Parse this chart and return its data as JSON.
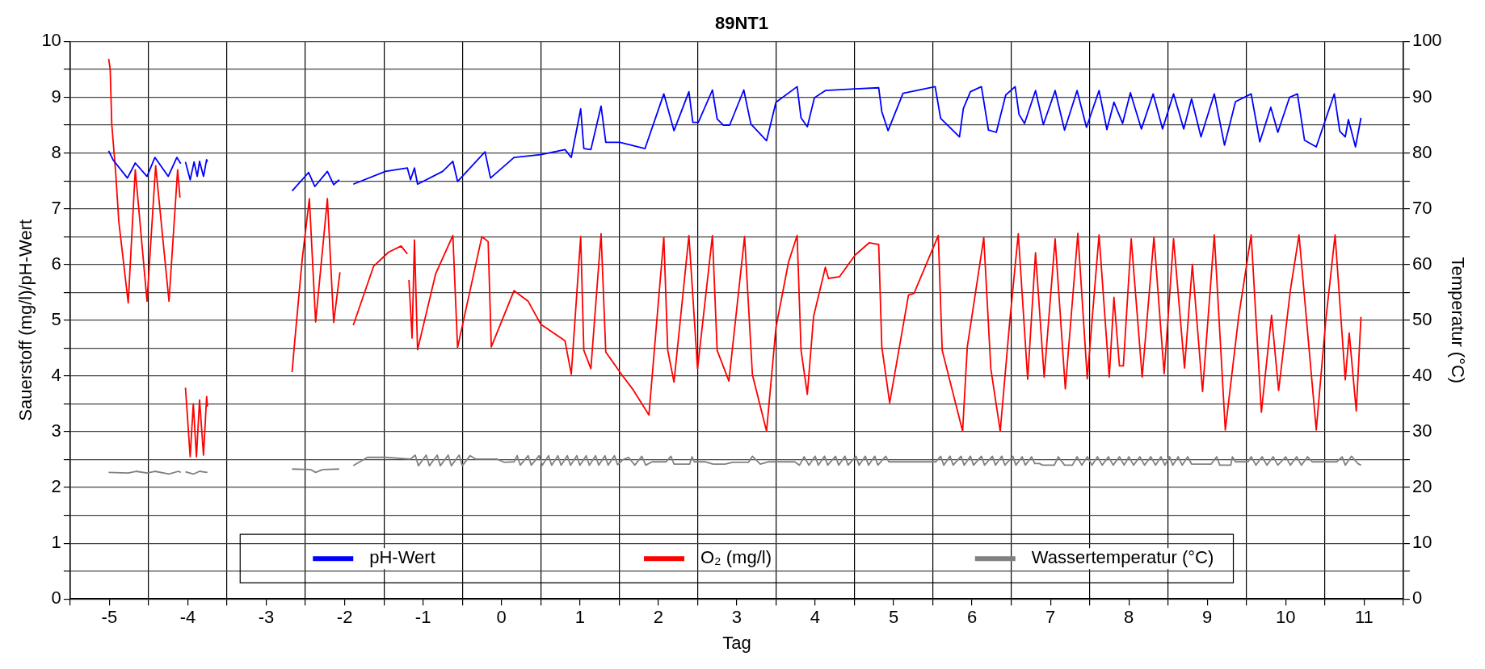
{
  "chart_data": {
    "type": "line",
    "title": "89NT1",
    "xlabel": "Tag",
    "ylabel": "Sauerstoff (mg/l)/pH-Wert",
    "y2label": "Temperatur (°C)",
    "xlim": [
      -5.5,
      11.5
    ],
    "xticks": [
      {
        "value": -5.5,
        "label": null
      },
      -5,
      {
        "value": -4.5,
        "label": null
      },
      -4,
      {
        "value": -3.5,
        "label": null
      },
      -3,
      {
        "value": -2.5,
        "label": null
      },
      -2,
      {
        "value": -1.5,
        "label": null
      },
      -1,
      {
        "value": -0.5,
        "label": null
      },
      0,
      {
        "value": 0.5,
        "label": null
      },
      1,
      {
        "value": 1.5,
        "label": null
      },
      2,
      {
        "value": 2.5,
        "label": null
      },
      3,
      {
        "value": 3.5,
        "label": null
      },
      4,
      {
        "value": 4.5,
        "label": null
      },
      5,
      {
        "value": 5.5,
        "label": null
      },
      6,
      {
        "value": 6.5,
        "label": null
      },
      7,
      {
        "value": 7.5,
        "label": null
      },
      8,
      {
        "value": 8.5,
        "label": null
      },
      9,
      {
        "value": 9.5,
        "label": null
      },
      10,
      {
        "value": 10.5,
        "label": null
      },
      11,
      {
        "value": 11.5,
        "label": null
      }
    ],
    "ylim": [
      0,
      10
    ],
    "yticks": [
      0,
      {
        "value": 0.5,
        "label": null
      },
      1,
      {
        "value": 1.5,
        "label": null
      },
      2,
      {
        "value": 2.5,
        "label": null
      },
      3,
      {
        "value": 3.5,
        "label": null
      },
      4,
      {
        "value": 4.5,
        "label": null
      },
      5,
      {
        "value": 5.5,
        "label": null
      },
      6,
      {
        "value": 6.5,
        "label": null
      },
      7,
      {
        "value": 7.5,
        "label": null
      },
      8,
      {
        "value": 8.5,
        "label": null
      },
      9,
      {
        "value": 9.5,
        "label": null
      },
      10
    ],
    "y2lim": [
      0,
      100
    ],
    "y2ticks": [
      0,
      {
        "value": 5,
        "label": null
      },
      10,
      {
        "value": 15,
        "label": null
      },
      20,
      {
        "value": 25,
        "label": null
      },
      30,
      {
        "value": 35,
        "label": null
      },
      40,
      {
        "value": 45,
        "label": null
      },
      50,
      {
        "value": 55,
        "label": null
      },
      60,
      {
        "value": 65,
        "label": null
      },
      70,
      {
        "value": 75,
        "label": null
      },
      80,
      {
        "value": 85,
        "label": null
      },
      90,
      {
        "value": 95,
        "label": null
      },
      100
    ],
    "grid": true,
    "legend": "bottom",
    "marker": "none",
    "series": [
      {
        "name": "pH-Wert",
        "color": "#0000ff",
        "x": [
          -5.01,
          -4.95,
          -4.77,
          -4.67,
          -4.52,
          -4.42,
          -4.25,
          -4.14,
          -4.09,
          -4.06,
          -4.03,
          -3.97,
          -3.92,
          -3.88,
          -3.85,
          -3.8,
          -3.76,
          -3.75,
          -3.2,
          -2.67,
          -2.46,
          -2.38,
          -2.22,
          -2.14,
          -2.07,
          -1.98,
          -1.89,
          -1.48,
          -1.2,
          -1.16,
          -1.11,
          -1.07,
          -0.75,
          -0.62,
          -0.56,
          -0.21,
          -0.14,
          0.16,
          0.5,
          0.81,
          0.89,
          1.01,
          1.05,
          1.14,
          1.27,
          1.33,
          1.51,
          1.83,
          2.07,
          2.2,
          2.39,
          2.44,
          2.51,
          2.69,
          2.75,
          2.83,
          2.91,
          3.09,
          3.18,
          3.38,
          3.5,
          3.77,
          3.82,
          3.9,
          3.99,
          4.13,
          4.51,
          4.81,
          4.85,
          4.93,
          5.12,
          5.53,
          5.6,
          5.84,
          5.89,
          5.98,
          6.12,
          6.21,
          6.31,
          6.43,
          6.55,
          6.6,
          6.67,
          6.81,
          6.91,
          7.06,
          7.18,
          7.34,
          7.46,
          7.62,
          7.72,
          7.81,
          7.92,
          8.02,
          8.16,
          8.31,
          8.43,
          8.57,
          8.7,
          8.8,
          8.92,
          9.09,
          9.22,
          9.36,
          9.56,
          9.67,
          9.81,
          9.9,
          10.05,
          10.15,
          10.24,
          10.39,
          10.62,
          10.69,
          10.76,
          10.8,
          10.89,
          10.96
        ],
        "values": [
          8.04,
          7.87,
          7.55,
          7.82,
          7.58,
          7.92,
          7.58,
          7.92,
          7.81,
          null,
          7.84,
          7.52,
          7.84,
          7.58,
          7.85,
          7.58,
          7.88,
          7.84,
          null,
          7.32,
          7.65,
          7.4,
          7.67,
          7.43,
          7.52,
          null,
          7.44,
          7.67,
          7.73,
          7.52,
          7.73,
          7.44,
          7.67,
          7.85,
          7.49,
          8.02,
          7.55,
          7.92,
          7.97,
          8.06,
          7.92,
          8.79,
          8.08,
          8.06,
          8.84,
          8.19,
          8.19,
          8.08,
          9.06,
          8.4,
          9.1,
          8.55,
          8.55,
          9.13,
          8.61,
          8.5,
          8.5,
          9.13,
          8.52,
          8.22,
          8.91,
          9.19,
          8.63,
          8.47,
          8.99,
          9.12,
          9.15,
          9.17,
          8.74,
          8.4,
          9.07,
          9.19,
          8.62,
          8.29,
          8.8,
          9.1,
          9.19,
          8.41,
          8.37,
          9.04,
          9.19,
          8.69,
          8.53,
          9.12,
          8.51,
          9.12,
          8.41,
          9.12,
          8.46,
          9.12,
          8.42,
          8.91,
          8.53,
          9.08,
          8.43,
          9.06,
          8.43,
          9.06,
          8.43,
          8.97,
          8.29,
          9.06,
          8.14,
          8.92,
          9.06,
          8.2,
          8.82,
          8.37,
          9.0,
          9.06,
          8.23,
          8.11,
          9.06,
          8.39,
          8.29,
          8.6,
          8.11,
          8.63
        ]
      },
      {
        "name": "O₂ (mg/l)",
        "color": "#ff0000",
        "x": [
          -5.01,
          -4.99,
          -4.97,
          -4.92,
          -4.88,
          -4.76,
          -4.67,
          -4.52,
          -4.41,
          -4.24,
          -4.13,
          -4.1,
          -4.06,
          -4.03,
          -3.97,
          -3.93,
          -3.89,
          -3.85,
          -3.8,
          -3.76,
          -3.75,
          -3.2,
          -2.67,
          -2.64,
          -2.54,
          -2.45,
          -2.37,
          -2.22,
          -2.14,
          -2.06,
          -1.98,
          -1.89,
          -1.63,
          -1.44,
          -1.28,
          -1.2,
          -1.19,
          -1.18,
          -1.14,
          -1.11,
          -1.07,
          -0.84,
          -0.62,
          -0.56,
          -0.25,
          -0.17,
          -0.13,
          0.16,
          0.34,
          0.5,
          0.81,
          0.89,
          1.01,
          1.05,
          1.14,
          1.27,
          1.33,
          1.52,
          1.68,
          1.88,
          2.07,
          2.12,
          2.2,
          2.39,
          2.5,
          2.69,
          2.75,
          2.9,
          3.1,
          3.2,
          3.38,
          3.5,
          3.66,
          3.77,
          3.82,
          3.9,
          3.98,
          4.13,
          4.17,
          4.31,
          4.51,
          4.69,
          4.81,
          4.85,
          4.95,
          5.19,
          5.26,
          5.57,
          5.62,
          5.88,
          5.94,
          6.15,
          6.24,
          6.36,
          6.48,
          6.59,
          6.71,
          6.81,
          6.92,
          7.06,
          7.19,
          7.35,
          7.47,
          7.62,
          7.75,
          7.81,
          7.88,
          7.93,
          8.03,
          8.17,
          8.32,
          8.45,
          8.57,
          8.71,
          8.81,
          8.94,
          9.09,
          9.23,
          9.4,
          9.56,
          9.69,
          9.82,
          9.91,
          10.06,
          10.17,
          10.39,
          10.51,
          10.63,
          10.76,
          10.81,
          10.9,
          10.96
        ],
        "values": [
          9.69,
          9.51,
          8.52,
          7.65,
          6.77,
          5.31,
          7.7,
          5.34,
          7.77,
          5.34,
          7.7,
          7.2,
          null,
          3.79,
          2.55,
          3.5,
          2.55,
          3.57,
          2.58,
          3.63,
          3.45,
          null,
          4.07,
          4.57,
          6.11,
          7.18,
          4.97,
          7.18,
          4.96,
          5.86,
          null,
          4.91,
          5.97,
          6.22,
          6.33,
          6.19,
          null,
          5.72,
          4.68,
          6.44,
          4.47,
          5.83,
          6.52,
          4.51,
          6.5,
          6.41,
          4.52,
          5.53,
          5.34,
          4.93,
          4.63,
          4.03,
          6.5,
          4.46,
          4.13,
          6.55,
          4.43,
          4.05,
          3.75,
          3.3,
          6.49,
          4.46,
          3.89,
          6.52,
          4.13,
          6.52,
          4.46,
          3.91,
          6.5,
          4.02,
          3.01,
          4.87,
          6.04,
          6.52,
          4.46,
          3.67,
          5.07,
          5.95,
          5.75,
          5.78,
          6.17,
          6.39,
          6.36,
          4.52,
          3.52,
          5.45,
          5.48,
          6.52,
          4.46,
          3.01,
          4.52,
          6.48,
          4.13,
          3.01,
          4.96,
          6.55,
          3.94,
          6.21,
          3.98,
          6.46,
          3.77,
          6.56,
          3.95,
          6.53,
          3.98,
          5.41,
          4.18,
          4.18,
          6.46,
          3.98,
          6.49,
          4.04,
          6.46,
          4.14,
          6.0,
          3.72,
          6.53,
          3.03,
          5.06,
          6.53,
          3.35,
          5.09,
          3.74,
          5.54,
          6.53,
          3.03,
          4.98,
          6.53,
          3.93,
          4.77,
          3.37,
          5.06
        ]
      },
      {
        "name": "Wassertemperatur (°C)",
        "color": "#808080",
        "axis": "y2",
        "x": [
          -5.01,
          -4.76,
          -4.66,
          -4.52,
          -4.42,
          -4.24,
          -4.12,
          -4.09,
          -4.06,
          -4.03,
          -3.93,
          -3.85,
          -3.75,
          -3.2,
          -2.67,
          -2.43,
          -2.37,
          -2.28,
          -2.07,
          -1.98,
          -1.89,
          -1.71,
          -1.48,
          -1.16,
          -1.1,
          -1.06,
          -0.96,
          -0.92,
          -0.82,
          -0.78,
          -0.68,
          -0.64,
          -0.54,
          -0.5,
          -0.4,
          -0.33,
          -0.06,
          0.04,
          0.16,
          0.2,
          0.24,
          0.34,
          0.38,
          0.48,
          0.52,
          0.6,
          0.64,
          0.72,
          0.76,
          0.84,
          0.88,
          0.96,
          1.0,
          1.08,
          1.12,
          1.2,
          1.24,
          1.32,
          1.36,
          1.44,
          1.48,
          1.55,
          1.62,
          1.7,
          1.79,
          1.84,
          1.92,
          2.1,
          2.16,
          2.2,
          2.4,
          2.43,
          2.46,
          2.6,
          2.7,
          2.85,
          2.95,
          3.15,
          3.2,
          3.3,
          3.4,
          3.74,
          3.8,
          3.86,
          3.92,
          4.0,
          4.04,
          4.12,
          4.16,
          4.26,
          4.3,
          4.38,
          4.42,
          4.52,
          4.56,
          4.64,
          4.68,
          4.76,
          4.8,
          4.9,
          4.94,
          5.54,
          5.6,
          5.64,
          5.72,
          5.76,
          5.86,
          5.9,
          5.98,
          6.02,
          6.12,
          6.16,
          6.26,
          6.3,
          6.38,
          6.42,
          6.52,
          6.56,
          6.64,
          6.68,
          6.76,
          6.8,
          6.86,
          6.9,
          7.05,
          7.1,
          7.18,
          7.28,
          7.34,
          7.4,
          7.47,
          7.53,
          7.6,
          7.66,
          7.74,
          7.8,
          7.88,
          7.94,
          8.0,
          8.06,
          8.14,
          8.2,
          8.28,
          8.34,
          8.41,
          8.46,
          8.52,
          8.56,
          8.63,
          8.68,
          8.75,
          8.8,
          9.05,
          9.12,
          9.16,
          9.3,
          9.32,
          9.36,
          9.52,
          9.56,
          9.62,
          9.7,
          9.76,
          9.84,
          9.9,
          10.0,
          10.06,
          10.14,
          10.2,
          10.28,
          10.34,
          10.65,
          10.72,
          10.76,
          10.84,
          10.92,
          10.96
        ],
        "values": [
          22.7,
          22.6,
          22.9,
          22.6,
          22.9,
          22.4,
          22.9,
          22.7,
          null,
          22.8,
          22.4,
          22.9,
          22.7,
          null,
          23.3,
          23.2,
          22.7,
          23.2,
          23.3,
          null,
          23.9,
          25.4,
          25.4,
          25.1,
          25.8,
          23.9,
          25.8,
          23.9,
          25.8,
          23.9,
          25.8,
          23.9,
          25.8,
          23.9,
          25.7,
          25.1,
          25.1,
          24.5,
          24.6,
          25.7,
          24.0,
          25.7,
          24.0,
          25.7,
          24.0,
          25.7,
          24.0,
          25.7,
          24.0,
          25.7,
          24.0,
          25.7,
          24.0,
          25.7,
          24.0,
          25.7,
          24.0,
          25.7,
          24.0,
          25.7,
          24.1,
          25.0,
          25.4,
          24.0,
          25.6,
          24.0,
          24.6,
          24.6,
          25.6,
          24.2,
          24.2,
          25.5,
          24.6,
          24.6,
          24.2,
          24.2,
          24.5,
          24.5,
          25.6,
          24.2,
          24.6,
          24.6,
          24.0,
          25.5,
          24.0,
          25.6,
          24.0,
          25.6,
          24.0,
          25.6,
          24.0,
          25.6,
          24.0,
          25.6,
          24.0,
          25.6,
          24.0,
          25.6,
          24.0,
          25.6,
          24.6,
          24.6,
          25.6,
          24.0,
          25.6,
          24.0,
          25.6,
          24.0,
          25.6,
          24.0,
          25.6,
          24.0,
          25.6,
          24.0,
          25.6,
          24.0,
          25.6,
          24.0,
          25.5,
          24.0,
          25.5,
          24.3,
          24.3,
          24.0,
          24.0,
          25.5,
          24.0,
          24.0,
          25.5,
          24.0,
          25.5,
          24.0,
          25.5,
          24.0,
          25.5,
          24.0,
          25.5,
          24.0,
          25.5,
          24.0,
          25.5,
          24.0,
          25.5,
          24.0,
          25.5,
          24.0,
          25.5,
          24.0,
          25.5,
          24.0,
          25.5,
          24.2,
          24.2,
          25.5,
          24.0,
          24.0,
          25.5,
          24.6,
          24.6,
          25.5,
          24.0,
          25.5,
          24.0,
          25.5,
          24.0,
          25.5,
          24.0,
          25.5,
          24.0,
          25.5,
          24.6,
          24.6,
          25.5,
          24.0,
          25.6,
          24.3,
          24.0
        ]
      }
    ]
  }
}
